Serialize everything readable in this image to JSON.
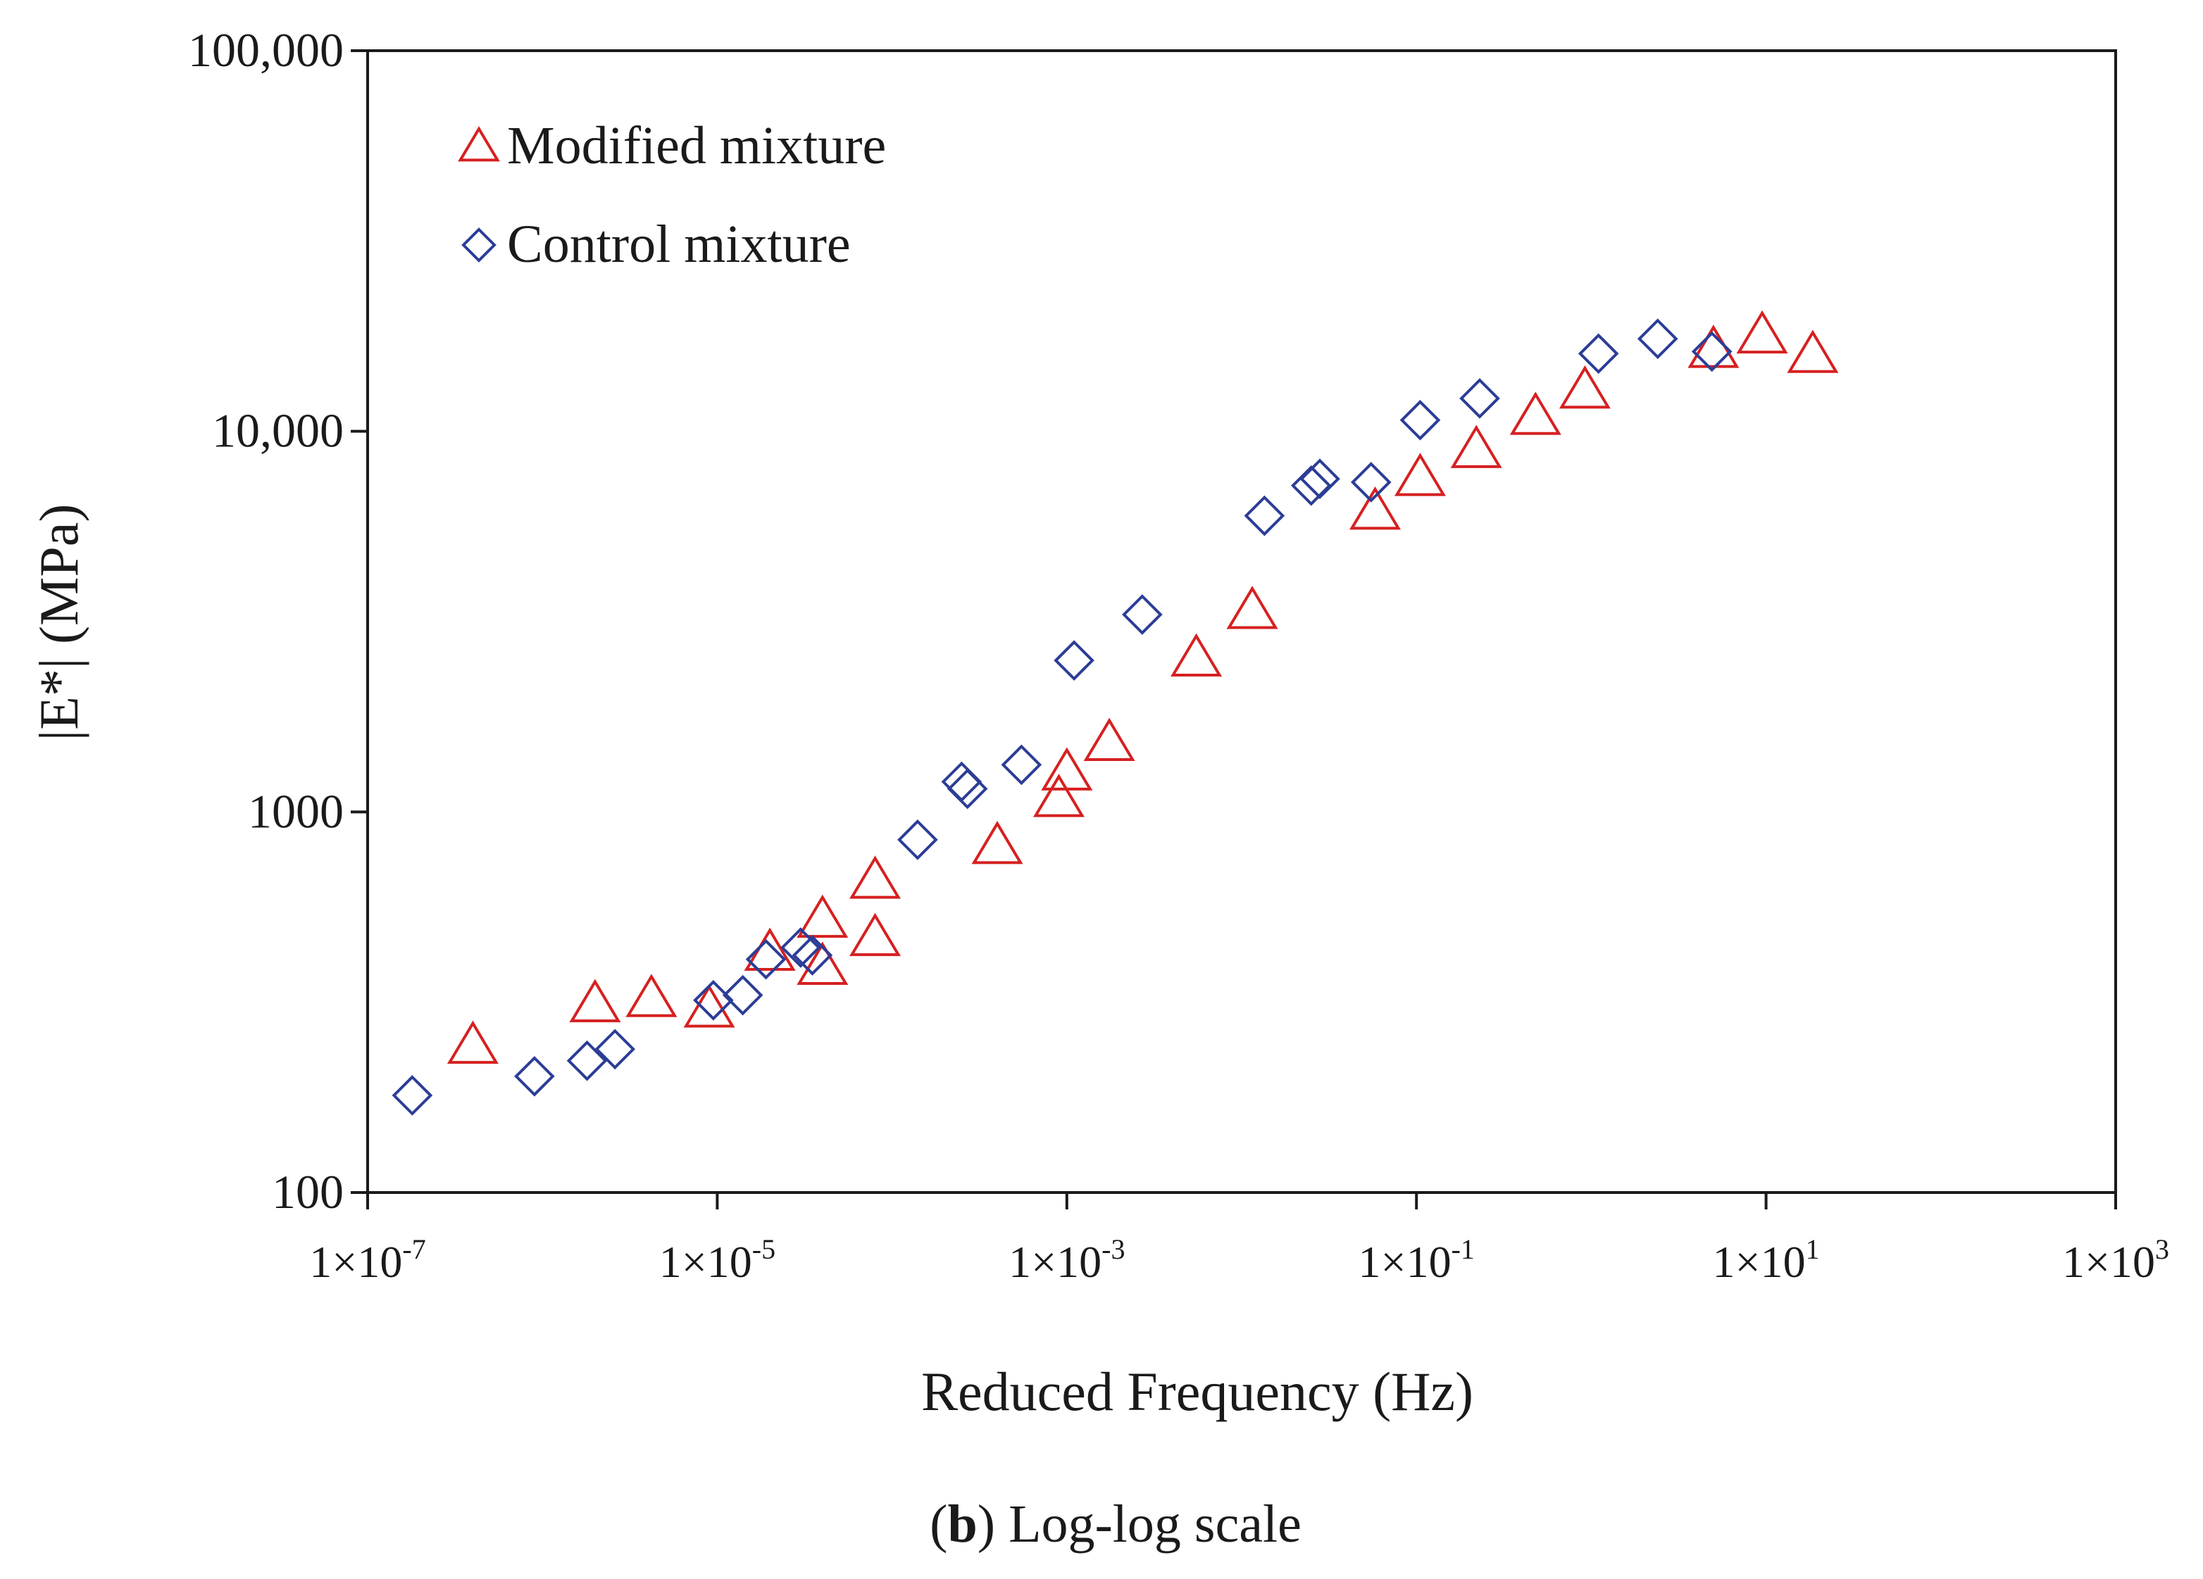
{
  "chart_data": {
    "type": "scatter",
    "title": "",
    "xlabel": "Reduced Frequency (Hz)",
    "ylabel": "|E*| (MPa)",
    "xscale": "log",
    "yscale": "log",
    "xlim": [
      1e-07,
      1000
    ],
    "ylim": [
      100,
      100000
    ],
    "legend_position": "top-left",
    "grid": false,
    "x_ticks": [
      {
        "value": 1e-07,
        "base": "1×10",
        "exp": "-7"
      },
      {
        "value": 1e-05,
        "base": "1×10",
        "exp": "-5"
      },
      {
        "value": 0.001,
        "base": "1×10",
        "exp": "-3"
      },
      {
        "value": 0.1,
        "base": "1×10",
        "exp": "-1"
      },
      {
        "value": 10,
        "base": "1×10",
        "exp": "1"
      },
      {
        "value": 1000,
        "base": "1×10",
        "exp": "3"
      }
    ],
    "y_ticks": [
      {
        "value": 100,
        "label": "100"
      },
      {
        "value": 1000,
        "label": "1000"
      },
      {
        "value": 10000,
        "label": "10,000"
      },
      {
        "value": 100000,
        "label": "100,000"
      }
    ],
    "series": [
      {
        "name": "Modified mixture",
        "marker": "triangle",
        "color": "#d62020",
        "points": [
          {
            "x": 4e-07,
            "y": 245
          },
          {
            "x": 2e-06,
            "y": 315
          },
          {
            "x": 4.2e-06,
            "y": 325
          },
          {
            "x": 9e-06,
            "y": 305
          },
          {
            "x": 2e-05,
            "y": 430
          },
          {
            "x": 4e-05,
            "y": 395
          },
          {
            "x": 4e-05,
            "y": 525
          },
          {
            "x": 8e-05,
            "y": 470
          },
          {
            "x": 8e-05,
            "y": 665
          },
          {
            "x": 0.0004,
            "y": 820
          },
          {
            "x": 0.0009,
            "y": 1090
          },
          {
            "x": 0.001,
            "y": 1280
          },
          {
            "x": 0.00175,
            "y": 1530
          },
          {
            "x": 0.0055,
            "y": 2550
          },
          {
            "x": 0.0115,
            "y": 3400
          },
          {
            "x": 0.058,
            "y": 6200
          },
          {
            "x": 0.105,
            "y": 7600
          },
          {
            "x": 0.22,
            "y": 9000
          },
          {
            "x": 0.48,
            "y": 11000
          },
          {
            "x": 0.92,
            "y": 12900
          },
          {
            "x": 5.0,
            "y": 16500
          },
          {
            "x": 9.5,
            "y": 18000
          },
          {
            "x": 18.5,
            "y": 16000
          }
        ]
      },
      {
        "name": "Control mixture",
        "marker": "diamond",
        "color": "#2b3d96",
        "points": [
          {
            "x": 1.8e-07,
            "y": 180
          },
          {
            "x": 9e-07,
            "y": 202
          },
          {
            "x": 1.8e-06,
            "y": 222
          },
          {
            "x": 2.6e-06,
            "y": 238
          },
          {
            "x": 9.5e-06,
            "y": 320
          },
          {
            "x": 1.4e-05,
            "y": 330
          },
          {
            "x": 1.9e-05,
            "y": 410
          },
          {
            "x": 3e-05,
            "y": 440
          },
          {
            "x": 3.5e-05,
            "y": 420
          },
          {
            "x": 0.00014,
            "y": 845
          },
          {
            "x": 0.00025,
            "y": 1200
          },
          {
            "x": 0.00027,
            "y": 1150
          },
          {
            "x": 0.00055,
            "y": 1330
          },
          {
            "x": 0.0011,
            "y": 2500
          },
          {
            "x": 0.0027,
            "y": 3300
          },
          {
            "x": 0.0135,
            "y": 6000
          },
          {
            "x": 0.025,
            "y": 7200
          },
          {
            "x": 0.028,
            "y": 7500
          },
          {
            "x": 0.055,
            "y": 7350
          },
          {
            "x": 0.105,
            "y": 10700
          },
          {
            "x": 0.23,
            "y": 12200
          },
          {
            "x": 1.1,
            "y": 16000
          },
          {
            "x": 2.4,
            "y": 17500
          },
          {
            "x": 4.9,
            "y": 16200
          }
        ]
      }
    ]
  },
  "caption": {
    "bold": "b",
    "open": "(",
    "close": ")",
    "text": " Log-log scale"
  }
}
